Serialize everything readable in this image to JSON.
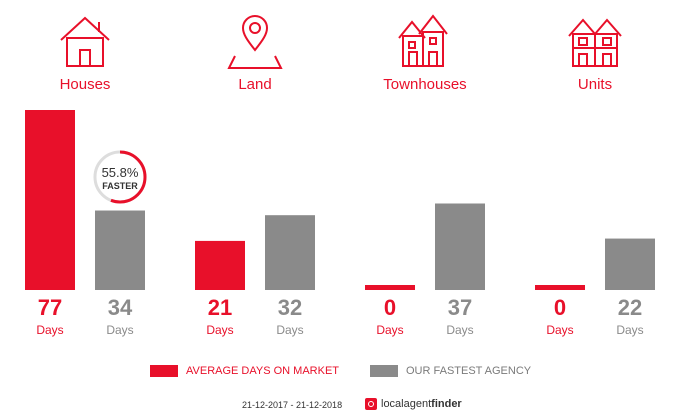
{
  "colors": {
    "accent": "#e8102a",
    "secondary": "#8a8a8a"
  },
  "categories": [
    {
      "label": "Houses",
      "icon": "house-icon"
    },
    {
      "label": "Land",
      "icon": "map-pin-icon"
    },
    {
      "label": "Townhouses",
      "icon": "townhouses-icon"
    },
    {
      "label": "Units",
      "icon": "units-building-icon"
    }
  ],
  "chart_data": {
    "type": "bar",
    "categories": [
      "Houses",
      "Land",
      "Townhouses",
      "Units"
    ],
    "series": [
      {
        "name": "AVERAGE DAYS ON MARKET",
        "values": [
          77,
          21,
          0,
          0
        ],
        "color": "#e8102a"
      },
      {
        "name": "OUR FASTEST AGENCY",
        "values": [
          34,
          32,
          37,
          22
        ],
        "color": "#8a8a8a"
      }
    ],
    "value_unit": "Days",
    "ylim": [
      0,
      80
    ],
    "legend_position": "bottom"
  },
  "badge": {
    "percent": "55.8%",
    "label": "FASTER",
    "fraction": 0.558
  },
  "legend": {
    "average": "AVERAGE DAYS ON MARKET",
    "fastest": "OUR FASTEST AGENCY"
  },
  "footer": {
    "date_range": "21-12-2017 - 21-12-2018",
    "brand_part1": "localagent",
    "brand_part2": "finder"
  }
}
